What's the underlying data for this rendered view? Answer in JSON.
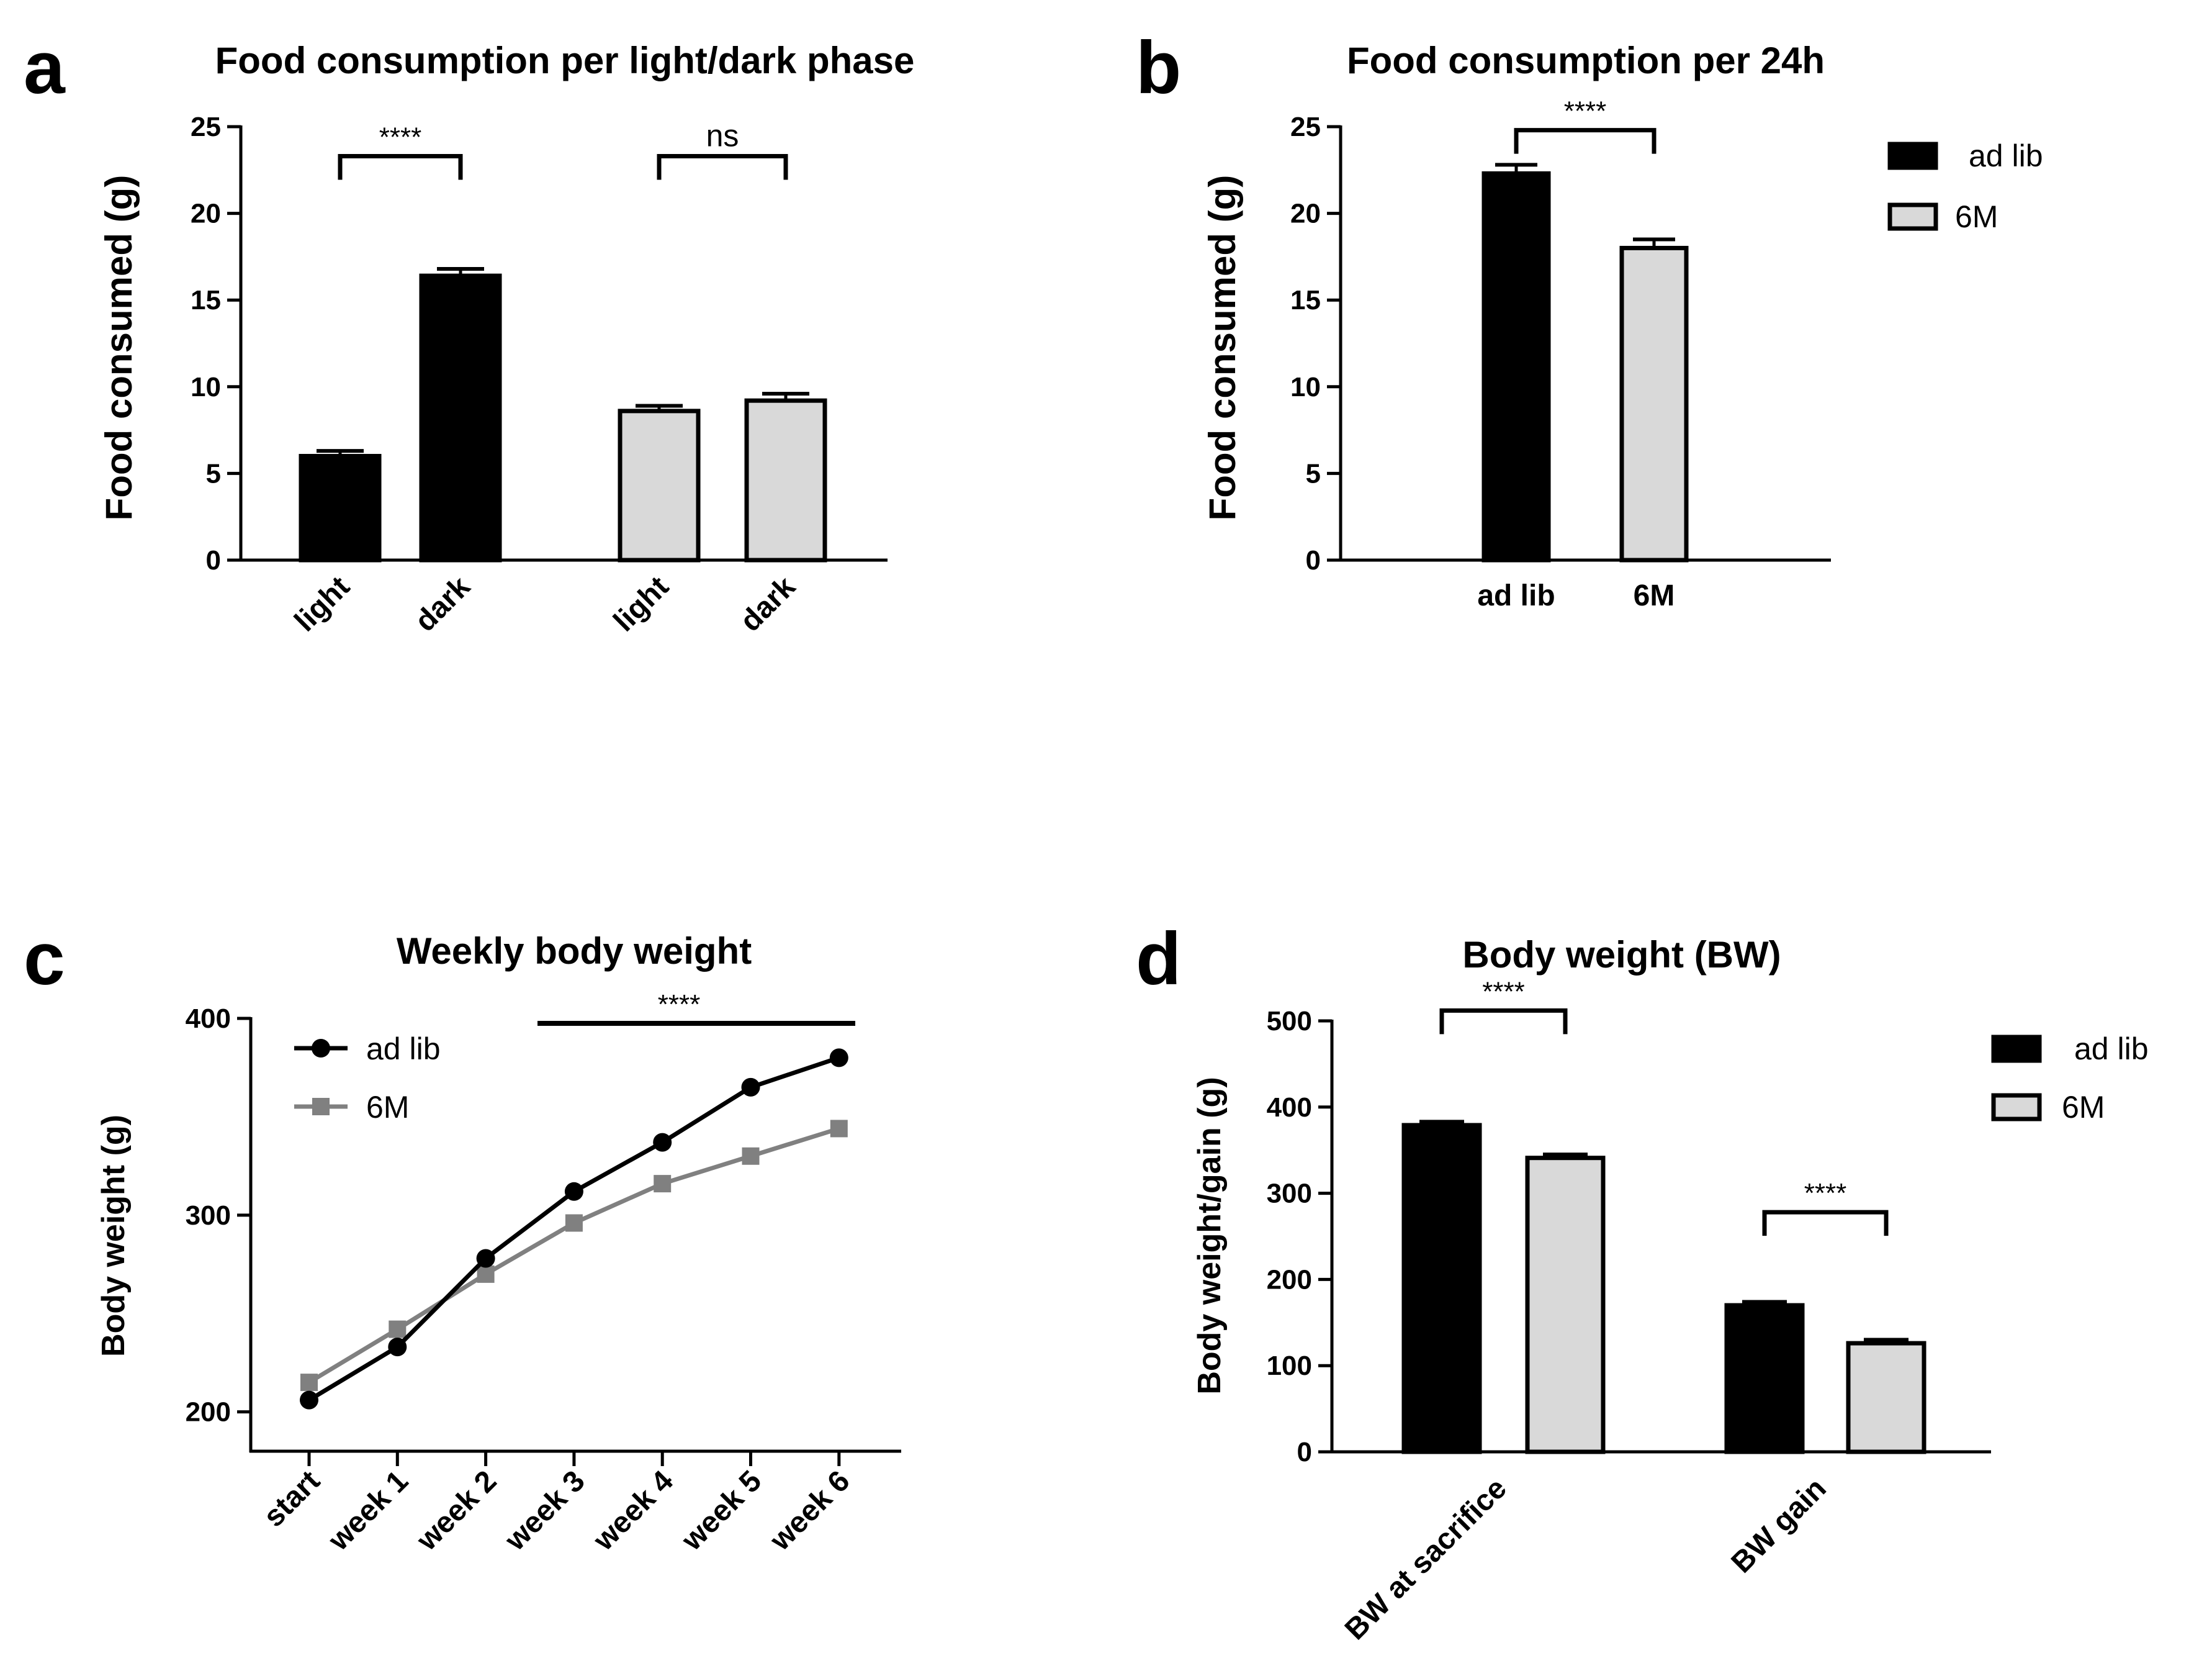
{
  "figure": {
    "panels": {
      "a": {
        "letter": "a"
      },
      "b": {
        "letter": "b"
      },
      "c": {
        "letter": "c"
      },
      "d": {
        "letter": "d"
      }
    }
  },
  "chart_data": [
    {
      "panel": "a",
      "type": "bar",
      "title": "Food consumption per light/dark phase",
      "ylabel": "Food consumed (g)",
      "xlabel": "",
      "ylim": [
        0,
        25
      ],
      "yticks": [
        "0",
        "5",
        "10",
        "15",
        "20",
        "25"
      ],
      "categories": [
        "light",
        "dark",
        "light",
        "dark"
      ],
      "values": [
        6.0,
        16.4,
        8.6,
        9.2
      ],
      "errors": [
        0.3,
        0.4,
        0.3,
        0.4
      ],
      "fills": [
        "#000000",
        "#000000",
        "#d9d9d9",
        "#d9d9d9"
      ],
      "significance": [
        {
          "label": "****",
          "between": [
            0,
            1
          ],
          "y": 23.3
        },
        {
          "label": "ns",
          "between": [
            2,
            3
          ],
          "y": 23.3
        }
      ]
    },
    {
      "panel": "b",
      "type": "bar",
      "title": "Food consumption per 24h",
      "ylabel": "Food consumed (g)",
      "xlabel": "",
      "ylim": [
        0,
        25
      ],
      "yticks": [
        "0",
        "5",
        "10",
        "15",
        "20",
        "25"
      ],
      "categories": [
        "ad lib",
        "6M"
      ],
      "values": [
        22.3,
        18.0
      ],
      "errors": [
        0.5,
        0.5
      ],
      "fills": [
        "#000000",
        "#d9d9d9"
      ],
      "significance": [
        {
          "label": "****",
          "between": [
            0,
            1
          ],
          "y": 24.8
        }
      ],
      "legend": [
        {
          "name": "ad lib",
          "color": "#000000"
        },
        {
          "name": "6M",
          "color": "#d9d9d9"
        }
      ],
      "legend_position": "right"
    },
    {
      "panel": "c",
      "type": "line",
      "title": "Weekly body weight",
      "ylabel": "Body weight (g)",
      "xlabel": "",
      "ylim": [
        180,
        400
      ],
      "yticks": [
        "200",
        "300",
        "400"
      ],
      "categories": [
        "start",
        "week 1",
        "week 2",
        "week 3",
        "week 4",
        "week 5",
        "week 6"
      ],
      "series": [
        {
          "name": "ad lib",
          "color": "#000000",
          "marker": "circle",
          "values": [
            206,
            233,
            278,
            312,
            337,
            365,
            380
          ]
        },
        {
          "name": "6M",
          "color": "#808080",
          "marker": "square",
          "values": [
            215,
            242,
            270,
            296,
            316,
            330,
            344
          ]
        }
      ],
      "significance": [
        {
          "label": "****",
          "between": [
            3,
            6
          ],
          "y": 397
        }
      ],
      "legend_position": "top-left"
    },
    {
      "panel": "d",
      "type": "bar",
      "title": "Body weight (BW)",
      "ylabel": "Body weight/gain (g)",
      "xlabel": "",
      "ylim": [
        0,
        500
      ],
      "yticks": [
        "0",
        "100",
        "200",
        "300",
        "400",
        "500"
      ],
      "categories": [
        "BW at sacrifice",
        "BW gain"
      ],
      "series": [
        {
          "name": "ad lib",
          "color": "#000000",
          "values": [
            379,
            170
          ],
          "errors": [
            4,
            4
          ]
        },
        {
          "name": "6M",
          "color": "#d9d9d9",
          "values": [
            341,
            126
          ],
          "errors": [
            4,
            4
          ]
        }
      ],
      "significance": [
        {
          "label": "****",
          "group": 0,
          "y": 512
        },
        {
          "label": "****",
          "group": 1,
          "y": 278
        }
      ],
      "legend_position": "right"
    }
  ]
}
